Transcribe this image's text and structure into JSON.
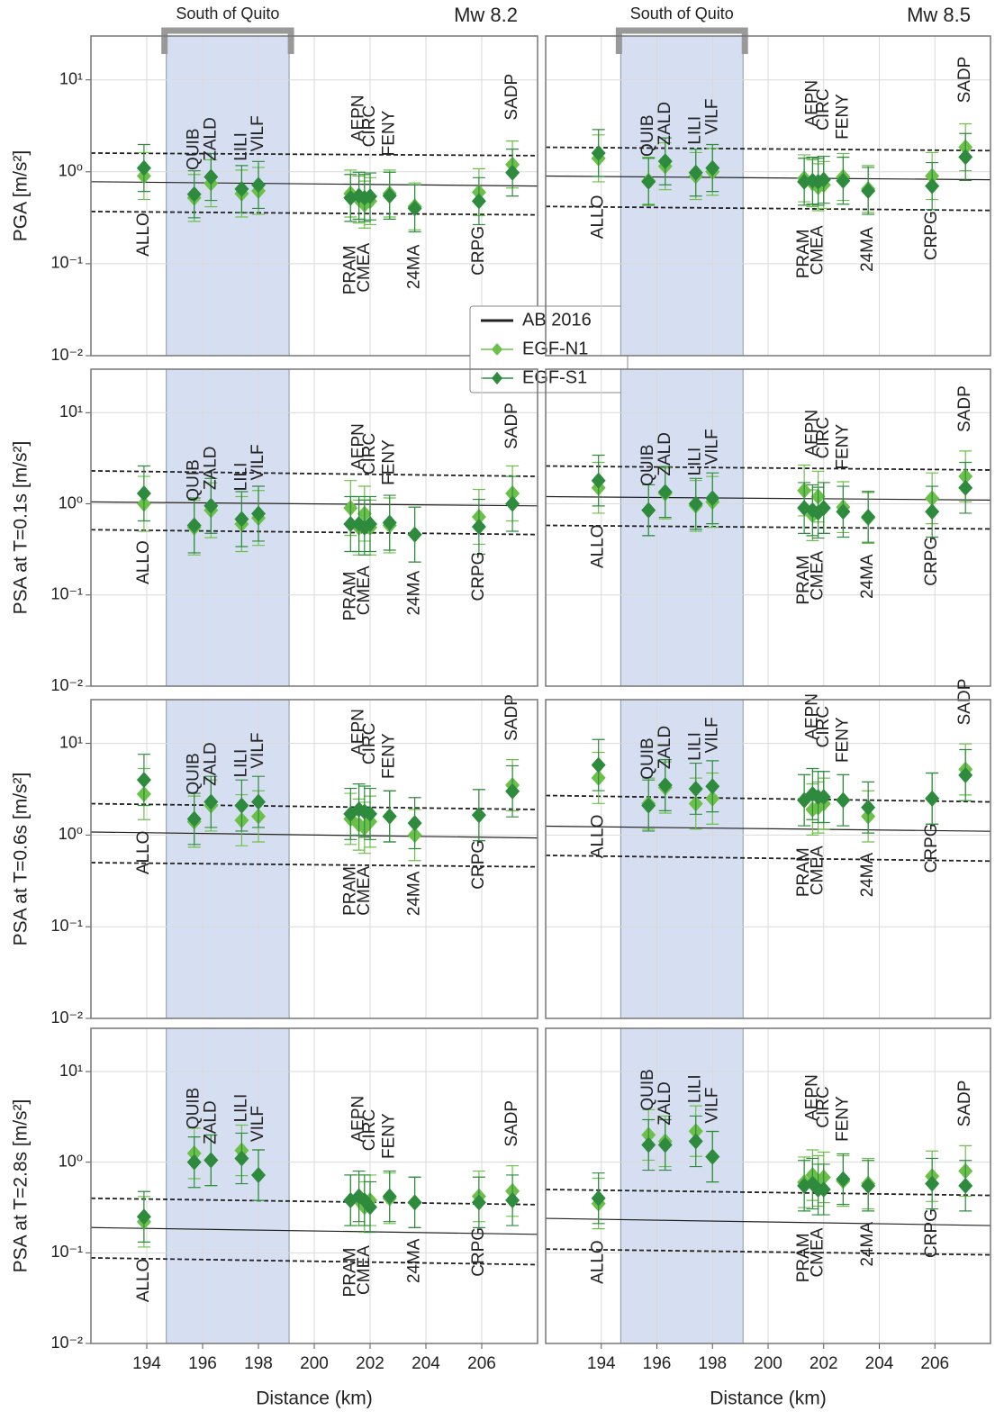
{
  "chart_data": [
    {
      "type": "scatter",
      "title": "Mw 8.2",
      "band_label": "South of Quito",
      "y_label": "PGA  [m/s²]",
      "legend": "lower right",
      "band": [
        194.7,
        199.1
      ],
      "xlim": [
        192,
        208
      ],
      "xticks": [
        194,
        196,
        198,
        200,
        202,
        204,
        206
      ],
      "ylim": [
        0.01,
        30
      ],
      "yticks": [
        {
          "value": 0.01,
          "label": "10⁻²"
        },
        {
          "value": 0.1,
          "label": "10⁻¹"
        },
        {
          "value": 1,
          "label": "10⁰"
        },
        {
          "value": 10,
          "label": "10¹"
        }
      ],
      "x": [
        193.9,
        195.7,
        196.3,
        197.4,
        198.0,
        201.3,
        201.6,
        201.8,
        202.0,
        202.7,
        203.6,
        205.9,
        207.1
      ],
      "point_labels": [
        "ALLO",
        "QUIB",
        "ZALD",
        "LILI",
        "VILF",
        "PRAM",
        "AEPN",
        "CMEA",
        "CIRC",
        "FENY",
        "24MA",
        "CRPG",
        "SADP"
      ],
      "series": [
        {
          "name": "AB 2016",
          "color": "#222222",
          "x": [
            192,
            208
          ],
          "values": [
            0.78,
            0.7
          ],
          "upper": [
            1.6,
            1.5
          ],
          "lower": [
            0.37,
            0.34
          ]
        },
        {
          "name": "EGF-N1",
          "color": "#6cc04a",
          "values": [
            0.9,
            0.52,
            0.75,
            0.58,
            0.62,
            0.58,
            0.5,
            0.44,
            0.48,
            0.58,
            0.42,
            0.6,
            1.2
          ],
          "error_factor": 1.8
        },
        {
          "name": "EGF-S1",
          "color": "#2e8b3e",
          "values": [
            1.1,
            0.57,
            0.88,
            0.65,
            0.72,
            0.52,
            0.55,
            0.52,
            0.54,
            0.55,
            0.4,
            0.48,
            0.98
          ],
          "error_factor": 1.8
        }
      ]
    },
    {
      "type": "scatter",
      "title": "Mw 8.5",
      "band_label": "South of Quito",
      "band": [
        194.7,
        199.1
      ],
      "xlim": [
        192,
        208
      ],
      "xticks": [
        194,
        196,
        198,
        200,
        202,
        204,
        206
      ],
      "ylim": [
        0.01,
        30
      ],
      "yticks": [
        0.01,
        0.1,
        1,
        10
      ],
      "x": [
        193.9,
        195.7,
        196.3,
        197.4,
        198.0,
        201.3,
        201.6,
        201.8,
        202.0,
        202.7,
        203.6,
        205.9,
        207.1
      ],
      "point_labels": [
        "ALLO",
        "QUIB",
        "ZALD",
        "LILI",
        "VILF",
        "PRAM",
        "AEPN",
        "CMEA",
        "CIRC",
        "FENY",
        "24MA",
        "CRPG",
        "SADP"
      ],
      "series": [
        {
          "color": "#222222",
          "x": [
            192,
            208
          ],
          "values": [
            0.9,
            0.82
          ],
          "upper": [
            1.85,
            1.7
          ],
          "lower": [
            0.42,
            0.38
          ]
        },
        {
          "color": "#6cc04a",
          "values": [
            1.4,
            0.8,
            1.15,
            0.9,
            1.0,
            0.85,
            0.75,
            0.68,
            0.72,
            0.88,
            0.65,
            0.9,
            1.85
          ],
          "error_factor": 1.8
        },
        {
          "color": "#2e8b3e",
          "values": [
            1.6,
            0.78,
            1.3,
            0.98,
            1.1,
            0.78,
            0.8,
            0.78,
            0.82,
            0.8,
            0.62,
            0.7,
            1.45
          ],
          "error_factor": 1.8
        }
      ]
    },
    {
      "type": "scatter",
      "y_label": "PSA at T=0.1s [m/s²]",
      "band": [
        194.7,
        199.1
      ],
      "xlim": [
        192,
        208
      ],
      "xticks": [
        194,
        196,
        198,
        200,
        202,
        204,
        206
      ],
      "ylim": [
        0.01,
        30
      ],
      "yticks": [
        {
          "value": 0.01,
          "label": "10⁻²"
        },
        {
          "value": 0.1,
          "label": "10⁻¹"
        },
        {
          "value": 1,
          "label": "10⁰"
        },
        {
          "value": 10,
          "label": "10¹"
        }
      ],
      "x": [
        193.9,
        195.7,
        196.3,
        197.4,
        198.0,
        201.3,
        201.6,
        201.8,
        202.0,
        202.7,
        203.6,
        205.9,
        207.1
      ],
      "point_labels": [
        "ALLO",
        "QUIB",
        "ZALD",
        "LILI",
        "VILF",
        "PRAM",
        "AEPN",
        "CMEA",
        "CIRC",
        "FENY",
        "24MA",
        "CRPG",
        "SADP"
      ],
      "series": [
        {
          "color": "#222222",
          "x": [
            192,
            208
          ],
          "values": [
            1.05,
            0.95
          ],
          "upper": [
            2.3,
            2.0
          ],
          "lower": [
            0.52,
            0.46
          ]
        },
        {
          "color": "#6cc04a",
          "values": [
            1.0,
            0.55,
            0.85,
            0.6,
            0.7,
            0.9,
            0.55,
            0.78,
            0.55,
            0.58,
            0.46,
            0.72,
            1.3
          ],
          "error_factor": 2.0
        },
        {
          "color": "#2e8b3e",
          "values": [
            1.3,
            0.58,
            0.95,
            0.68,
            0.78,
            0.6,
            0.6,
            0.55,
            0.6,
            0.62,
            0.46,
            0.56,
            1.0
          ],
          "error_factor": 2.0
        }
      ]
    },
    {
      "type": "scatter",
      "band": [
        194.7,
        199.1
      ],
      "xlim": [
        192,
        208
      ],
      "xticks": [
        194,
        196,
        198,
        200,
        202,
        204,
        206
      ],
      "ylim": [
        0.01,
        30
      ],
      "yticks": [
        0.01,
        0.1,
        1,
        10
      ],
      "x": [
        193.9,
        195.7,
        196.3,
        197.4,
        198.0,
        201.3,
        201.6,
        201.8,
        202.0,
        202.7,
        203.6,
        205.9,
        207.1
      ],
      "point_labels": [
        "ALLO",
        "QUIB",
        "ZALD",
        "LILI",
        "VILF",
        "PRAM",
        "AEPN",
        "CMEA",
        "CIRC",
        "FENY",
        "24MA",
        "CRPG",
        "SADP"
      ],
      "series": [
        {
          "color": "#222222",
          "x": [
            192,
            208
          ],
          "values": [
            1.2,
            1.1
          ],
          "upper": [
            2.6,
            2.35
          ],
          "lower": [
            0.58,
            0.53
          ]
        },
        {
          "color": "#6cc04a",
          "values": [
            1.5,
            0.85,
            1.3,
            0.95,
            1.05,
            1.4,
            0.75,
            1.2,
            0.9,
            0.92,
            0.7,
            1.15,
            2.0
          ],
          "error_factor": 1.9
        },
        {
          "color": "#2e8b3e",
          "values": [
            1.8,
            0.85,
            1.35,
            1.0,
            1.15,
            0.9,
            0.85,
            0.8,
            0.9,
            0.82,
            0.72,
            0.82,
            1.5
          ],
          "error_factor": 1.9
        }
      ]
    },
    {
      "type": "scatter",
      "y_label": "PSA at T=0.6s [m/s²]",
      "band": [
        194.7,
        199.1
      ],
      "xlim": [
        192,
        208
      ],
      "xticks": [
        194,
        196,
        198,
        200,
        202,
        204,
        206
      ],
      "ylim": [
        0.01,
        30
      ],
      "yticks": [
        {
          "value": 0.01,
          "label": "10⁻²"
        },
        {
          "value": 0.1,
          "label": "10⁻¹"
        },
        {
          "value": 1,
          "label": "10⁰"
        },
        {
          "value": 10,
          "label": "10¹"
        }
      ],
      "x": [
        193.9,
        195.7,
        196.3,
        197.4,
        198.0,
        201.3,
        201.6,
        201.8,
        202.0,
        202.7,
        203.6,
        205.9,
        207.1
      ],
      "point_labels": [
        "ALLO",
        "QUIB",
        "ZALD",
        "LILI",
        "VILF",
        "PRAM",
        "AEPN",
        "CMEA",
        "CIRC",
        "FENY",
        "24MA",
        "CRPG",
        "SADP"
      ],
      "series": [
        {
          "color": "#222222",
          "x": [
            192,
            208
          ],
          "values": [
            1.08,
            0.93
          ],
          "upper": [
            2.2,
            1.9
          ],
          "lower": [
            0.5,
            0.45
          ]
        },
        {
          "color": "#6cc04a",
          "values": [
            2.8,
            1.4,
            2.1,
            1.45,
            1.6,
            1.5,
            1.3,
            1.2,
            1.4,
            1.6,
            1.0,
            1.65,
            3.5
          ],
          "error_factor": 1.9
        },
        {
          "color": "#2e8b3e",
          "values": [
            4.0,
            1.5,
            2.3,
            2.1,
            2.3,
            1.7,
            1.9,
            1.8,
            1.7,
            1.6,
            1.35,
            1.65,
            3.0
          ],
          "error_factor": 1.9
        }
      ]
    },
    {
      "type": "scatter",
      "band": [
        194.7,
        199.1
      ],
      "xlim": [
        192,
        208
      ],
      "xticks": [
        194,
        196,
        198,
        200,
        202,
        204,
        206
      ],
      "ylim": [
        0.01,
        30
      ],
      "yticks": [
        0.01,
        0.1,
        1,
        10
      ],
      "x": [
        193.9,
        195.7,
        196.3,
        197.4,
        198.0,
        201.3,
        201.6,
        201.8,
        202.0,
        202.7,
        203.6,
        205.9,
        207.1
      ],
      "point_labels": [
        "ALLO",
        "QUIB",
        "ZALD",
        "LILI",
        "VILF",
        "PRAM",
        "AEPN",
        "CMEA",
        "CIRC",
        "FENY",
        "24MA",
        "CRPG",
        "SADP"
      ],
      "series": [
        {
          "color": "#222222",
          "x": [
            192,
            208
          ],
          "values": [
            1.25,
            1.1
          ],
          "upper": [
            2.7,
            2.3
          ],
          "lower": [
            0.6,
            0.52
          ]
        },
        {
          "color": "#6cc04a",
          "values": [
            4.2,
            2.2,
            3.3,
            2.2,
            2.5,
            2.4,
            1.9,
            2.0,
            2.2,
            2.4,
            1.6,
            2.5,
            5.2
          ],
          "error_factor": 1.9
        },
        {
          "color": "#2e8b3e",
          "values": [
            5.8,
            2.1,
            3.5,
            3.2,
            3.4,
            2.4,
            2.8,
            2.6,
            2.6,
            2.4,
            2.0,
            2.5,
            4.5
          ],
          "error_factor": 1.9
        }
      ]
    },
    {
      "type": "scatter",
      "y_label": "PSA at T=2.8s [m/s²]",
      "x_label": "Distance (km)",
      "band": [
        194.7,
        199.1
      ],
      "xlim": [
        192,
        208
      ],
      "xticks": [
        194,
        196,
        198,
        200,
        202,
        204,
        206
      ],
      "ylim": [
        0.01,
        30
      ],
      "yticks": [
        {
          "value": 0.01,
          "label": "10⁻²"
        },
        {
          "value": 0.1,
          "label": "10⁻¹"
        },
        {
          "value": 1,
          "label": "10⁰"
        },
        {
          "value": 10,
          "label": "10¹"
        }
      ],
      "x": [
        193.9,
        195.7,
        196.3,
        197.4,
        198.0,
        201.3,
        201.6,
        201.8,
        202.0,
        202.7,
        203.6,
        205.9,
        207.1
      ],
      "point_labels": [
        "ALLO",
        "QUIB",
        "ZALD",
        "LILI",
        "VILF",
        "PRAM",
        "AEPN",
        "CMEA",
        "CIRC",
        "FENY",
        "24MA",
        "CRPG",
        "SADP"
      ],
      "series": [
        {
          "color": "#222222",
          "x": [
            192,
            208
          ],
          "values": [
            0.19,
            0.16
          ],
          "upper": [
            0.4,
            0.34
          ],
          "lower": [
            0.088,
            0.074
          ]
        },
        {
          "color": "#6cc04a",
          "values": [
            0.22,
            1.25,
            1.05,
            1.35,
            0.72,
            0.38,
            0.38,
            0.32,
            0.38,
            0.4,
            0.36,
            0.42,
            0.48
          ],
          "error_factor": 1.9
        },
        {
          "color": "#2e8b3e",
          "values": [
            0.25,
            1.0,
            1.05,
            1.1,
            0.72,
            0.38,
            0.42,
            0.38,
            0.32,
            0.42,
            0.36,
            0.36,
            0.38
          ],
          "error_factor": 1.9
        }
      ]
    },
    {
      "type": "scatter",
      "x_label": "Distance (km)",
      "band": [
        194.7,
        199.1
      ],
      "xlim": [
        192,
        208
      ],
      "xticks": [
        194,
        196,
        198,
        200,
        202,
        204,
        206
      ],
      "ylim": [
        0.01,
        30
      ],
      "yticks": [
        0.01,
        0.1,
        1,
        10
      ],
      "x": [
        193.9,
        195.7,
        196.3,
        197.4,
        198.0,
        201.3,
        201.6,
        201.8,
        202.0,
        202.7,
        203.6,
        205.9,
        207.1
      ],
      "point_labels": [
        "ALLO",
        "QUIB",
        "ZALD",
        "LILI",
        "VILF",
        "PRAM",
        "AEPN",
        "CMEA",
        "CIRC",
        "FENY",
        "24MA",
        "CRPG",
        "SADP"
      ],
      "series": [
        {
          "color": "#222222",
          "x": [
            192,
            208
          ],
          "values": [
            0.24,
            0.2
          ],
          "upper": [
            0.5,
            0.43
          ],
          "lower": [
            0.11,
            0.095
          ]
        },
        {
          "color": "#6cc04a",
          "values": [
            0.35,
            2.0,
            1.7,
            2.2,
            1.15,
            0.6,
            0.72,
            0.62,
            0.68,
            0.62,
            0.58,
            0.7,
            0.8
          ],
          "error_factor": 1.9
        },
        {
          "color": "#2e8b3e",
          "values": [
            0.4,
            1.55,
            1.55,
            1.7,
            1.15,
            0.55,
            0.58,
            0.5,
            0.5,
            0.65,
            0.55,
            0.58,
            0.55
          ],
          "error_factor": 1.9
        }
      ]
    }
  ]
}
